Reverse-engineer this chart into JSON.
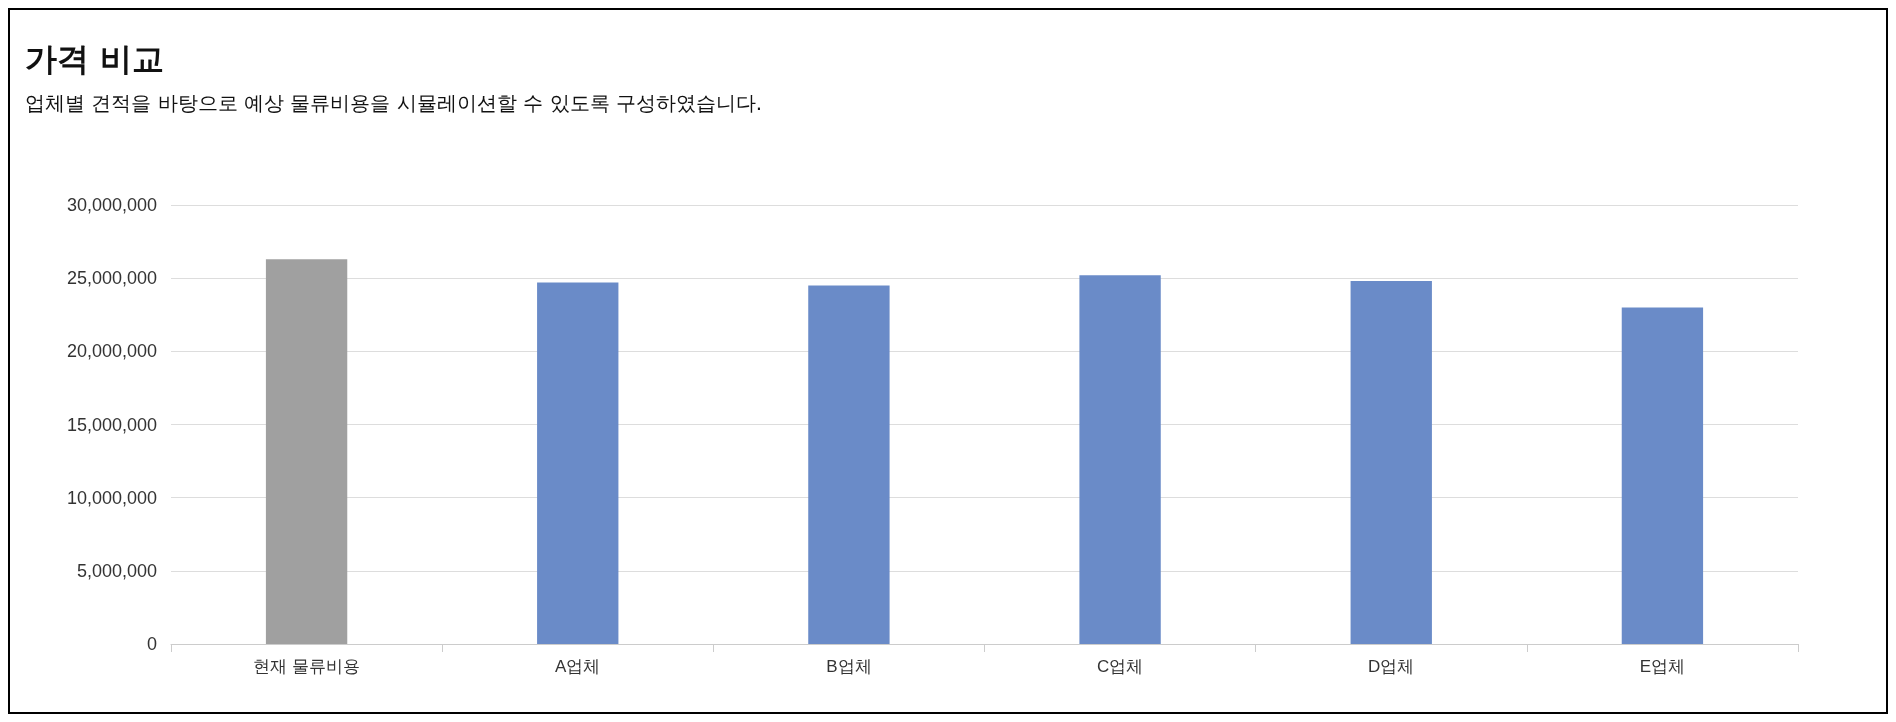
{
  "chart_data": {
    "type": "bar",
    "title": "가격 비교",
    "subtitle": "업체별 견적을 바탕으로 예상 물류비용을 시뮬레이션할 수 있도록 구성하였습니다.",
    "categories": [
      "현재 물류비용",
      "A업체",
      "B업체",
      "C업체",
      "D업체",
      "E업체"
    ],
    "values": [
      26300000,
      24700000,
      24500000,
      25200000,
      24800000,
      23000000
    ],
    "colors": [
      "#a0a0a0",
      "#6a8bc8",
      "#6a8bc8",
      "#6a8bc8",
      "#6a8bc8",
      "#6a8bc8"
    ],
    "ylim": [
      0,
      30000000
    ],
    "yticks": [
      0,
      {
        "value": 5000000,
        "label": "5,000,000"
      },
      {
        "value": 10000000,
        "label": "10,000,000"
      },
      {
        "value": 15000000,
        "label": "15,000,000"
      },
      {
        "value": 20000000,
        "label": "20,000,000"
      },
      {
        "value": 25000000,
        "label": "25,000,000"
      },
      {
        "value": 30000000,
        "label": "30,000,000"
      }
    ],
    "grid": "y"
  }
}
